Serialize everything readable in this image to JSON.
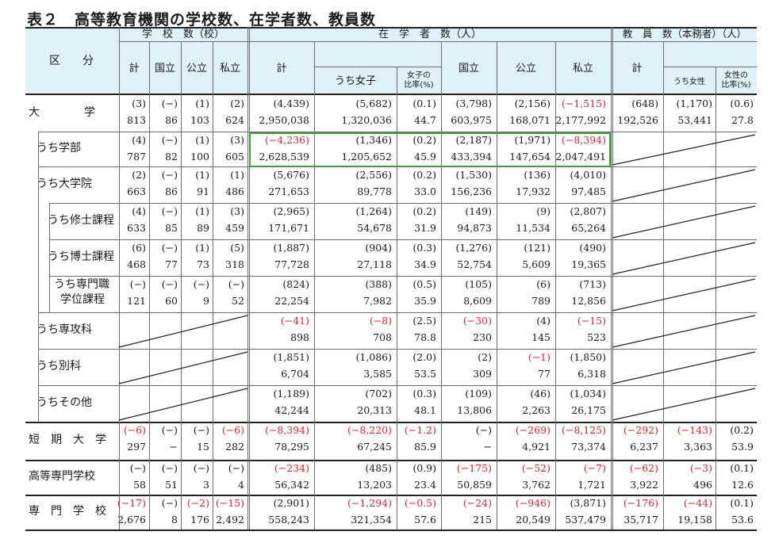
{
  "title": "表２　高等教育機関の学校数、在学者数、教員数",
  "header": {
    "section_label": "区　　分",
    "schools_group": "学　校　数（校）",
    "students_group": "在　学　者　数（人）",
    "teachers_group": "教　員　数（本務者）（人）",
    "school_cols": [
      "計",
      "国立",
      "公立",
      "私立"
    ],
    "student_total": "計",
    "student_women": "うち女子",
    "student_women_ratio": "女子の比率(%)",
    "student_cols": [
      "国立",
      "公立",
      "私立"
    ],
    "teacher_total": "計",
    "teacher_women": "うち女性",
    "teacher_women_ratio": "女性の比率(%)"
  },
  "rows": [
    {
      "label": "大　　　　学",
      "level": 0,
      "delta": [
        "(3)",
        "(−)",
        "(1)",
        "(2)",
        "(4,439)",
        "(5,682)",
        "(0.1)",
        "(3,798)",
        "(2,156)",
        "(−1,515)",
        "(648)",
        "(1,170)",
        "(0.6)"
      ],
      "value": [
        "813",
        "86",
        "103",
        "624",
        "2,950,038",
        "1,320,036",
        "44.7",
        "603,975",
        "168,071",
        "2,177,992",
        "192,526",
        "53,441",
        "27.8"
      ]
    },
    {
      "label": "うち学部",
      "level": 1,
      "delta": [
        "(4)",
        "(−)",
        "(1)",
        "(3)",
        "(−4,236)",
        "(1,346)",
        "(0.2)",
        "(2,187)",
        "(1,971)",
        "(−8,394)"
      ],
      "value": [
        "787",
        "82",
        "100",
        "605",
        "2,628,539",
        "1,205,652",
        "45.9",
        "433,394",
        "147,654",
        "2,047,491"
      ]
    },
    {
      "label": "うち大学院",
      "level": 1,
      "delta": [
        "(2)",
        "(−)",
        "(1)",
        "(1)",
        "(5,676)",
        "(2,556)",
        "(0.2)",
        "(1,530)",
        "(136)",
        "(4,010)"
      ],
      "value": [
        "663",
        "86",
        "91",
        "486",
        "271,653",
        "89,778",
        "33.0",
        "156,236",
        "17,932",
        "97,485"
      ]
    },
    {
      "label": "うち修士課程",
      "level": 2,
      "delta": [
        "(4)",
        "(−)",
        "(1)",
        "(3)",
        "(2,965)",
        "(1,264)",
        "(0.2)",
        "(149)",
        "(9)",
        "(2,807)"
      ],
      "value": [
        "633",
        "85",
        "89",
        "459",
        "171,671",
        "54,678",
        "31.9",
        "94,873",
        "11,534",
        "65,264"
      ]
    },
    {
      "label": "うち博士課程",
      "level": 2,
      "delta": [
        "(6)",
        "(−)",
        "(1)",
        "(5)",
        "(1,887)",
        "(904)",
        "(0.3)",
        "(1,276)",
        "(121)",
        "(490)"
      ],
      "value": [
        "468",
        "77",
        "73",
        "318",
        "77,728",
        "27,118",
        "34.9",
        "52,754",
        "5,609",
        "19,365"
      ]
    },
    {
      "label": "うち専門職\n学位課程",
      "level": 2,
      "delta": [
        "(−)",
        "(−)",
        "(−)",
        "(−)",
        "(824)",
        "(388)",
        "(0.5)",
        "(105)",
        "(6)",
        "(713)"
      ],
      "value": [
        "121",
        "60",
        "9",
        "52",
        "22,254",
        "7,982",
        "35.9",
        "8,609",
        "789",
        "12,856"
      ]
    },
    {
      "label": "うち専攻科",
      "level": 1,
      "delta": [
        "",
        "",
        "",
        "",
        "(−41)",
        "(−8)",
        "(2.5)",
        "(−30)",
        "(4)",
        "(−15)"
      ],
      "value": [
        "",
        "",
        "",
        "",
        "898",
        "708",
        "78.8",
        "230",
        "145",
        "523"
      ]
    },
    {
      "label": "うち別科",
      "level": 1,
      "delta": [
        "",
        "",
        "",
        "",
        "(1,851)",
        "(1,086)",
        "(2.0)",
        "(2)",
        "(−1)",
        "(1,850)"
      ],
      "value": [
        "",
        "",
        "",
        "",
        "6,704",
        "3,585",
        "53.5",
        "309",
        "77",
        "6,318"
      ]
    },
    {
      "label": "うちその他",
      "level": 1,
      "delta": [
        "",
        "",
        "",
        "",
        "(1,189)",
        "(702)",
        "(0.3)",
        "(109)",
        "(46)",
        "(1,034)"
      ],
      "value": [
        "",
        "",
        "",
        "",
        "42,244",
        "20,313",
        "48.1",
        "13,806",
        "2,263",
        "26,175"
      ]
    },
    {
      "label": "短　期　大　学",
      "level": 0,
      "delta": [
        "(−6)",
        "(−)",
        "(−)",
        "(−6)",
        "(−8,394)",
        "(−8,220)",
        "(−1.2)",
        "(−)",
        "(−269)",
        "(−8,125)",
        "(−292)",
        "(−143)",
        "(0.2)"
      ],
      "value": [
        "297",
        "−",
        "15",
        "282",
        "78,295",
        "67,245",
        "85.9",
        "−",
        "4,921",
        "73,374",
        "6,237",
        "3,363",
        "53.9"
      ]
    },
    {
      "label": "高等専門学校",
      "level": 0,
      "delta": [
        "(−)",
        "(−)",
        "(−)",
        "(−)",
        "(−234)",
        "(485)",
        "(0.9)",
        "(−175)",
        "(−52)",
        "(−7)",
        "(−62)",
        "(−3)",
        "(0.1)"
      ],
      "value": [
        "58",
        "51",
        "3",
        "4",
        "56,342",
        "13,203",
        "23.4",
        "50,859",
        "3,762",
        "1,721",
        "3,922",
        "496",
        "12.6"
      ]
    },
    {
      "label": "専　門　学　校",
      "level": 0,
      "delta": [
        "(−17)",
        "(−)",
        "(−2)",
        "(−15)",
        "(2,901)",
        "(−1,294)",
        "(−0.5)",
        "(−24)",
        "(−946)",
        "(3,871)",
        "(−176)",
        "(−44)",
        "(0.1)"
      ],
      "value": [
        "2,676",
        "8",
        "176",
        "2,492",
        "558,243",
        "321,354",
        "57.6",
        "215",
        "20,549",
        "537,479",
        "35,717",
        "19,158",
        "53.6"
      ]
    }
  ],
  "colors": {
    "header_band": "#dff2f7",
    "negative": "#e8202a",
    "highlight": "#3aa33a"
  }
}
